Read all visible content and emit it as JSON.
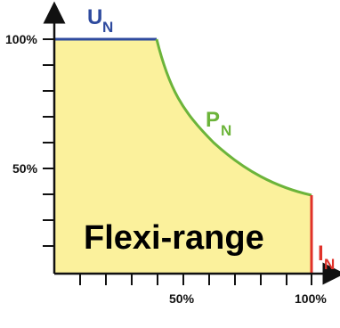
{
  "axes": {
    "y_ticks": [
      "100%",
      "50%"
    ],
    "x_ticks": [
      "50%",
      "100%"
    ]
  },
  "region": {
    "label": "Flexi-range",
    "fill": "#fbf19c"
  },
  "curves": {
    "voltage": {
      "symbol": "U",
      "subscript": "N",
      "color": "#2e4a9e"
    },
    "power": {
      "symbol": "P",
      "subscript": "N",
      "color": "#6cb43a"
    },
    "current": {
      "symbol": "I",
      "subscript": "N",
      "color": "#e0322a"
    }
  }
}
